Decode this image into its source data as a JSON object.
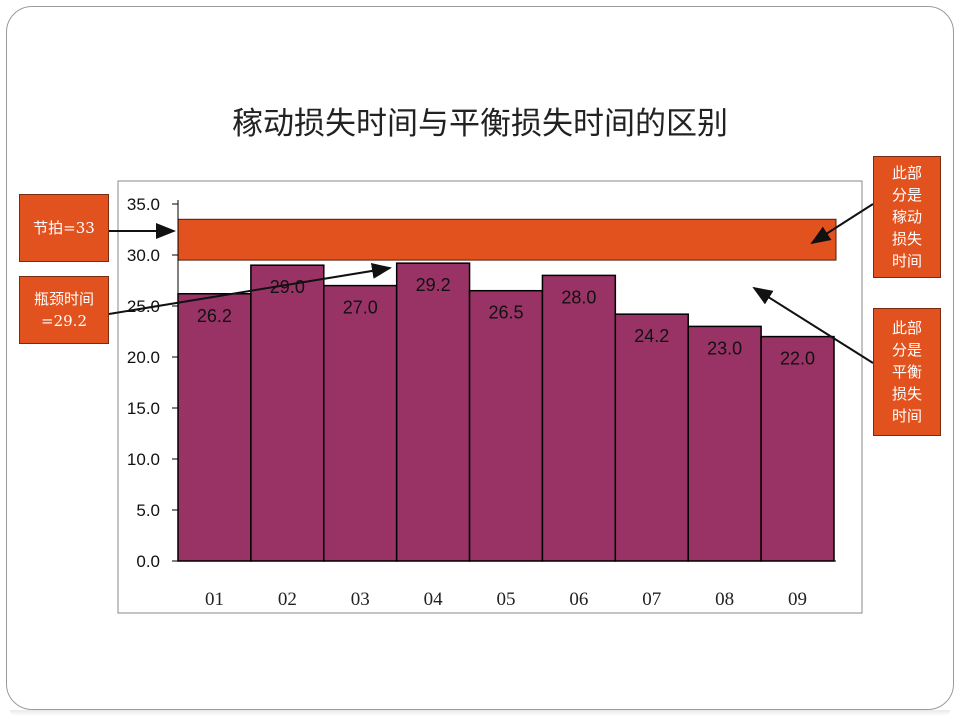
{
  "title": "稼动损失时间与平衡损失时间的区别",
  "callouts": {
    "takt": "节拍=33",
    "bottleneck": "瓶颈时间=29.2",
    "idle": "此部分是稼动损失时间",
    "balance": "此部分是平衡损失时间"
  },
  "colors": {
    "bar": "#993366",
    "band": "#e2521f",
    "callout": "#e2521f"
  },
  "chart_data": {
    "type": "bar",
    "categories": [
      "01",
      "02",
      "03",
      "04",
      "05",
      "06",
      "07",
      "08",
      "09"
    ],
    "values": [
      26.2,
      29.0,
      27.0,
      29.2,
      26.5,
      28.0,
      24.2,
      23.0,
      22.0
    ],
    "value_labels": [
      "26.2",
      "29.0",
      "27.0",
      "29.2",
      "26.5",
      "28.0",
      "24.2",
      "23.0",
      "22.0"
    ],
    "y_ticks": [
      "0.0",
      "5.0",
      "10.0",
      "15.0",
      "20.0",
      "25.0",
      "30.0",
      "35.0"
    ],
    "ylim": [
      0,
      35
    ],
    "takt_time": 33,
    "bottleneck_time": 29.2,
    "band_range": [
      29.5,
      33.5
    ],
    "grid": false,
    "legend": "none"
  }
}
